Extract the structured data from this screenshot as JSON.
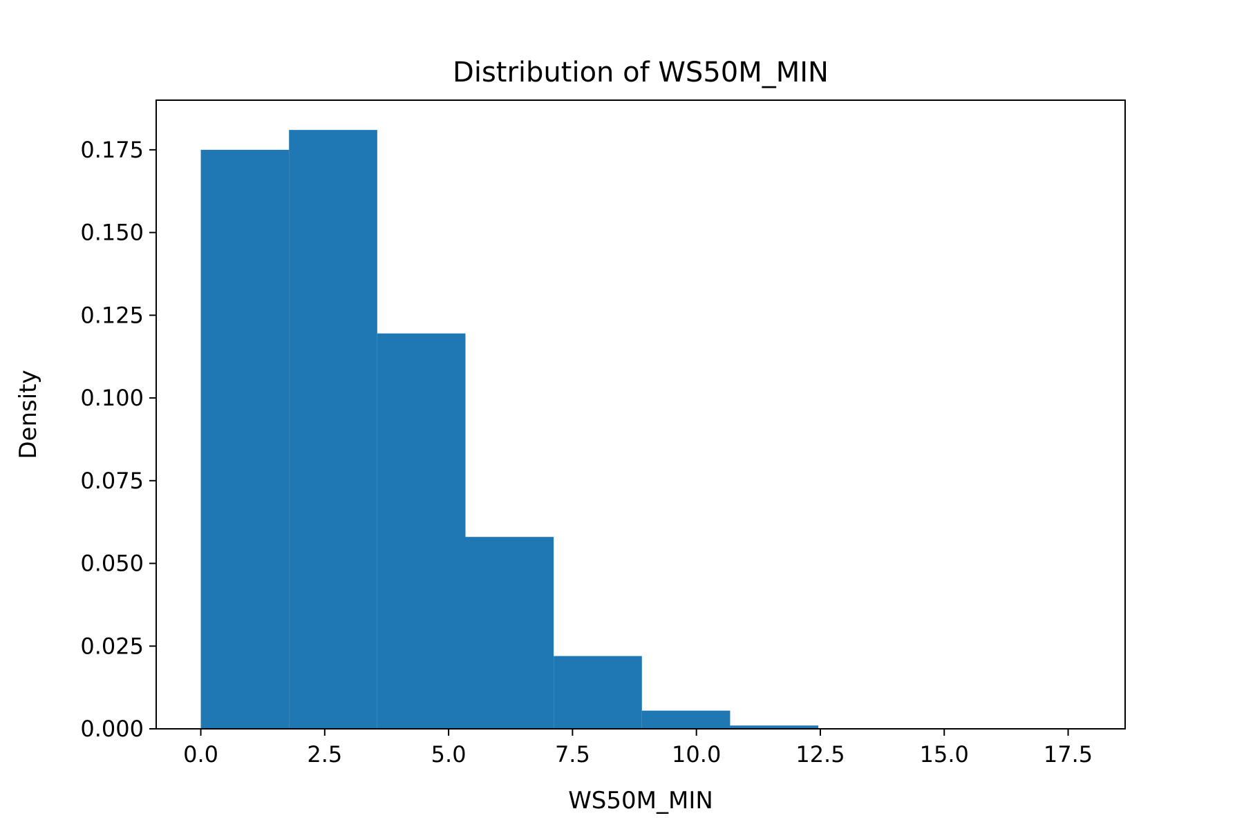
{
  "chart_data": {
    "type": "histogram",
    "title": "Distribution of WS50M_MIN",
    "xlabel": "WS50M_MIN",
    "ylabel": "Density",
    "xlim": [
      -0.9,
      18.65
    ],
    "ylim": [
      0,
      0.19
    ],
    "xticks": [
      0,
      2.5,
      5,
      7.5,
      10,
      12.5,
      15,
      17.5
    ],
    "xtick_labels": [
      "0.0",
      "2.5",
      "5.0",
      "7.5",
      "10.0",
      "12.5",
      "15.0",
      "17.5"
    ],
    "yticks": [
      0,
      0.025,
      0.05,
      0.075,
      0.1,
      0.125,
      0.15,
      0.175
    ],
    "ytick_labels": [
      "0.000",
      "0.025",
      "0.050",
      "0.075",
      "0.100",
      "0.125",
      "0.150",
      "0.175"
    ],
    "bin_edges": [
      0,
      1.78,
      3.56,
      5.34,
      7.12,
      8.9,
      10.68,
      12.46,
      14.24,
      16.02,
      17.8
    ],
    "values": [
      0.175,
      0.181,
      0.1195,
      0.058,
      0.022,
      0.0055,
      0.001,
      0.0002,
      0.0001,
      5e-05
    ],
    "color": "#1f77b4",
    "grid": false,
    "legend": "none"
  }
}
